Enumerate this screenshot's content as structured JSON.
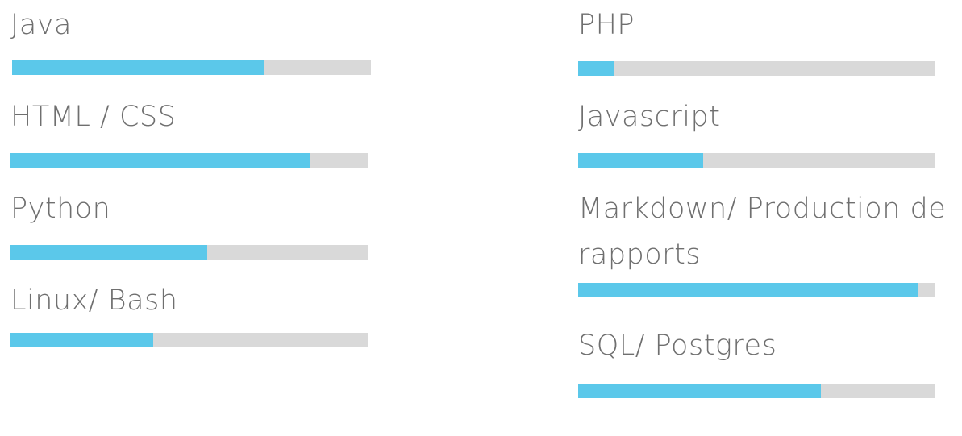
{
  "colors": {
    "bar_fill": "#5bc8ea",
    "bar_track": "#d9d9d9",
    "label_text": "#6f6f6f"
  },
  "skills_left": [
    {
      "label": "Java",
      "level_percent": 70
    },
    {
      "label": "HTML / CSS",
      "level_percent": 84
    },
    {
      "label": "Python",
      "level_percent": 55
    },
    {
      "label": "Linux/ Bash",
      "level_percent": 40
    }
  ],
  "skills_right": [
    {
      "label": "PHP",
      "level_percent": 10
    },
    {
      "label": "Javascript",
      "level_percent": 35
    },
    {
      "label": "Markdown/ Production de rapports",
      "level_percent": 95
    },
    {
      "label": "SQL/ Postgres",
      "level_percent": 68
    }
  ]
}
